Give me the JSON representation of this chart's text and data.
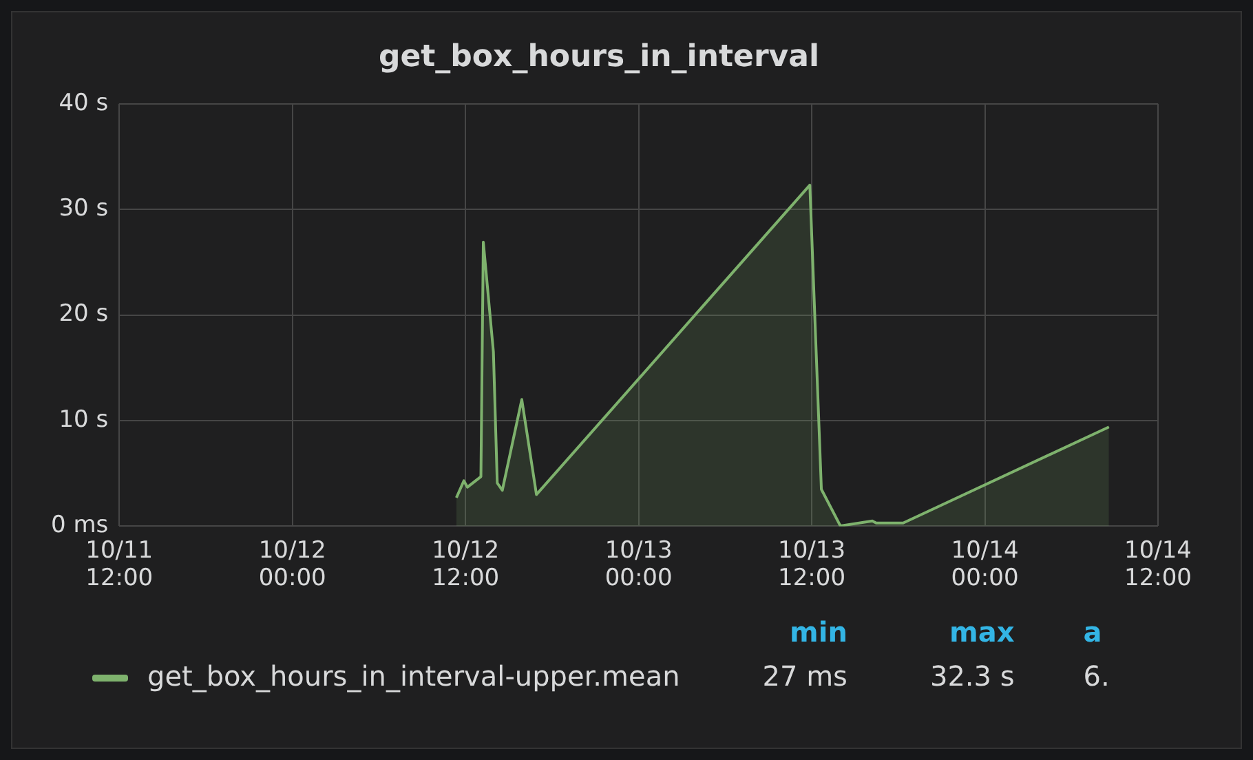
{
  "chart_data": {
    "type": "area",
    "title": "get_box_hours_in_interval",
    "x": [
      "--10-12T11:22",
      "--10-12T11:53",
      "--10-12T12:08",
      "--10-12T13:04",
      "--10-12T13:14",
      "--10-12T13:56",
      "--10-12T14:12",
      "--10-12T14:33",
      "--10-12T15:54",
      "--10-12T16:55",
      "--10-13T11:52",
      "--10-13T12:40",
      "--10-13T13:59",
      "--10-13T16:12",
      "--10-13T16:28",
      "--10-13T18:20",
      "--10-14T08:36"
    ],
    "series": [
      {
        "name": "get_box_hours_in_interval-upper.mean",
        "color": "#7eb26d",
        "values": [
          2.7,
          4.3,
          3.7,
          4.7,
          26.9,
          16.5,
          4.1,
          3.4,
          12.0,
          3.0,
          32.3,
          3.5,
          0.03,
          0.5,
          0.3,
          0.3,
          9.4
        ]
      }
    ],
    "xlim": [
      "--10-11T12:00",
      "--10-14T12:00"
    ],
    "xticks": [
      {
        "value": "--10-11T12:00",
        "label": "10/11 12:00"
      },
      {
        "value": "--10-12T00:00",
        "label": "10/12 00:00"
      },
      {
        "value": "--10-12T12:00",
        "label": "10/12 12:00"
      },
      {
        "value": "--10-13T00:00",
        "label": "10/13 00:00"
      },
      {
        "value": "--10-13T12:00",
        "label": "10/13 12:00"
      },
      {
        "value": "--10-14T00:00",
        "label": "10/14 00:00"
      },
      {
        "value": "--10-14T12:00",
        "label": "10/14 12:00"
      }
    ],
    "ylim": [
      0,
      40
    ],
    "yticks": [
      {
        "value": 0,
        "label": "0 ms"
      },
      {
        "value": 10,
        "label": "10 s"
      },
      {
        "value": 20,
        "label": "20 s"
      },
      {
        "value": 30,
        "label": "30 s"
      },
      {
        "value": 40,
        "label": "40 s"
      }
    ],
    "grid": true,
    "legend": "bottom",
    "annotations": [
      "min",
      "max",
      "a",
      "27 ms",
      "32.3 s",
      "6."
    ]
  }
}
